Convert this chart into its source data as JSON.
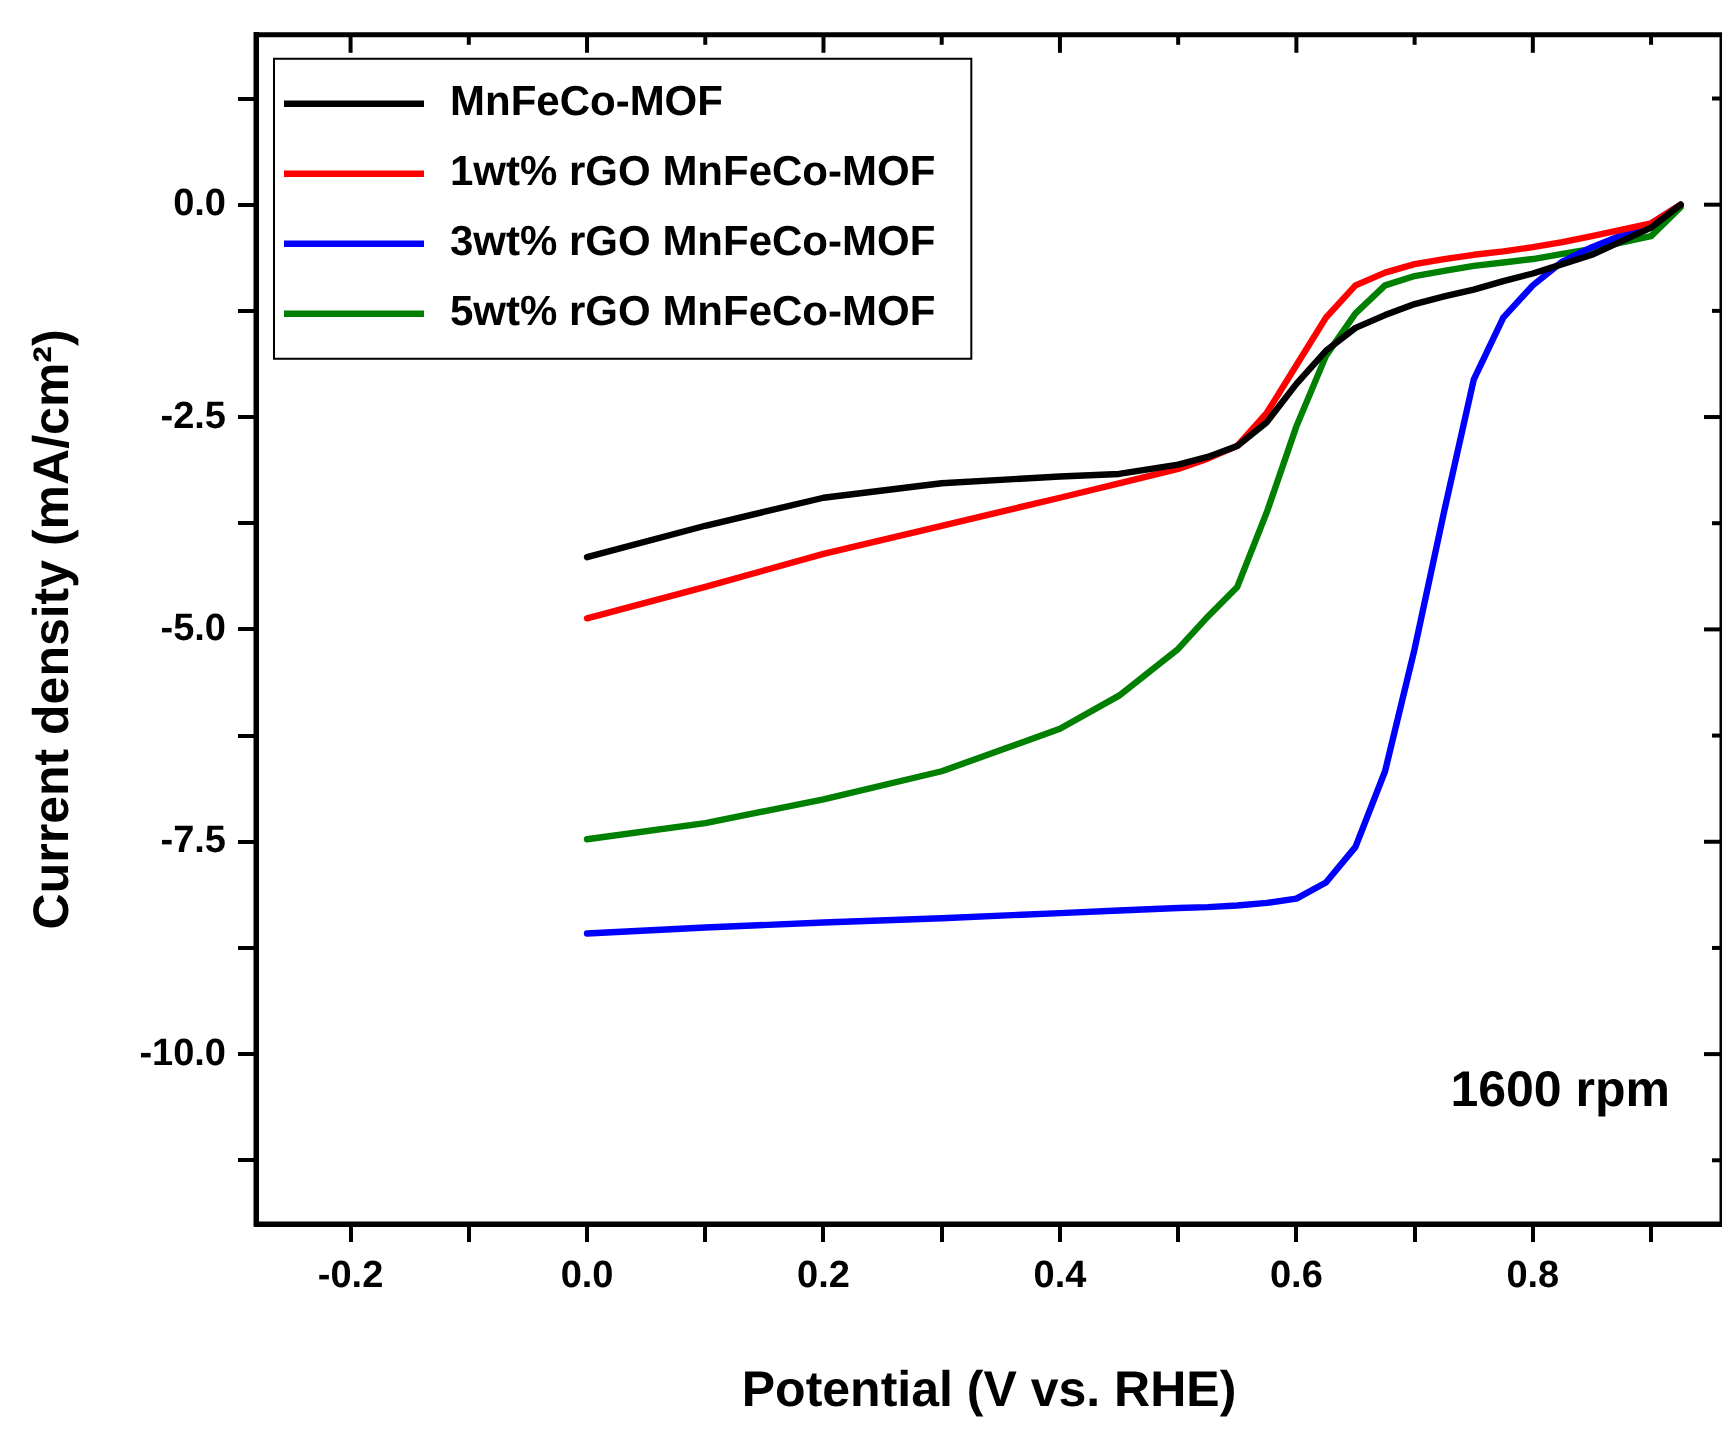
{
  "chart_data": {
    "type": "line",
    "xlabel": "Potential (V vs. RHE)",
    "ylabel": "Current density (mA/cm²)",
    "xlim": [
      -0.28,
      0.96
    ],
    "ylim": [
      -12,
      2
    ],
    "xticks": [
      -0.2,
      {
        "value": -0.1,
        "label": null
      },
      {
        "value": 0,
        "label": "0.0"
      },
      {
        "value": 0.1,
        "label": null
      },
      0.2,
      {
        "value": 0.3,
        "label": null
      },
      0.4,
      {
        "value": 0.5,
        "label": null
      },
      0.6,
      {
        "value": 0.7,
        "label": null
      },
      0.8,
      {
        "value": 0.9,
        "label": null
      }
    ],
    "yticks": [
      {
        "value": -11.25,
        "label": null
      },
      {
        "value": -10,
        "label": "-10.0"
      },
      {
        "value": -8.75,
        "label": null
      },
      -7.5,
      {
        "value": -6.25,
        "label": null
      },
      {
        "value": -5,
        "label": "-5.0"
      },
      {
        "value": -3.75,
        "label": null
      },
      -2.5,
      {
        "value": -1.25,
        "label": null
      },
      {
        "value": 0,
        "label": "0.0"
      },
      {
        "value": 1.25,
        "label": null
      }
    ],
    "grid": false,
    "legend": "top left",
    "marker": "none",
    "line_style": "solid",
    "annotations": [
      "1600 rpm"
    ],
    "x": [
      0,
      0.1,
      0.2,
      0.3,
      0.4,
      0.45,
      0.5,
      0.525,
      0.55,
      0.575,
      0.6,
      0.625,
      0.65,
      0.675,
      0.7,
      0.725,
      0.75,
      0.775,
      0.8,
      0.825,
      0.85,
      0.9,
      0.925
    ],
    "series": [
      {
        "name": "MnFeCo-MOF",
        "color": "#000000",
        "values": [
          -4.15,
          -3.78,
          -3.45,
          -3.28,
          -3.2,
          -3.17,
          -3.06,
          -2.97,
          -2.84,
          -2.56,
          -2.11,
          -1.72,
          -1.45,
          -1.3,
          -1.17,
          -1.08,
          -1.0,
          -0.9,
          -0.81,
          -0.7,
          -0.59,
          -0.27,
          0
        ]
      },
      {
        "name": "1wt% rGO MnFeCo-MOF",
        "color": "#ff0000",
        "values": [
          -4.87,
          -4.5,
          -4.11,
          -3.78,
          -3.45,
          -3.28,
          -3.11,
          -2.99,
          -2.84,
          -2.45,
          -1.89,
          -1.33,
          -0.95,
          -0.8,
          -0.7,
          -0.64,
          -0.59,
          -0.55,
          -0.5,
          -0.44,
          -0.37,
          -0.22,
          0
        ]
      },
      {
        "name": "3wt% rGO MnFeCo-MOF",
        "color": "#0000ff",
        "values": [
          -8.58,
          -8.51,
          -8.45,
          -8.4,
          -8.34,
          -8.31,
          -8.28,
          -8.27,
          -8.25,
          -8.22,
          -8.17,
          -7.98,
          -7.56,
          -6.67,
          -5.23,
          -3.61,
          -2.06,
          -1.33,
          -0.95,
          -0.67,
          -0.5,
          -0.22,
          0
        ]
      },
      {
        "name": "5wt% rGO MnFeCo-MOF",
        "color": "#008000",
        "values": [
          -7.47,
          -7.28,
          -7.0,
          -6.67,
          -6.17,
          -5.78,
          -5.23,
          -4.85,
          -4.5,
          -3.62,
          -2.61,
          -1.78,
          -1.28,
          -0.95,
          -0.84,
          -0.78,
          -0.72,
          -0.68,
          -0.64,
          -0.58,
          -0.52,
          -0.37,
          -0.03
        ]
      }
    ]
  }
}
